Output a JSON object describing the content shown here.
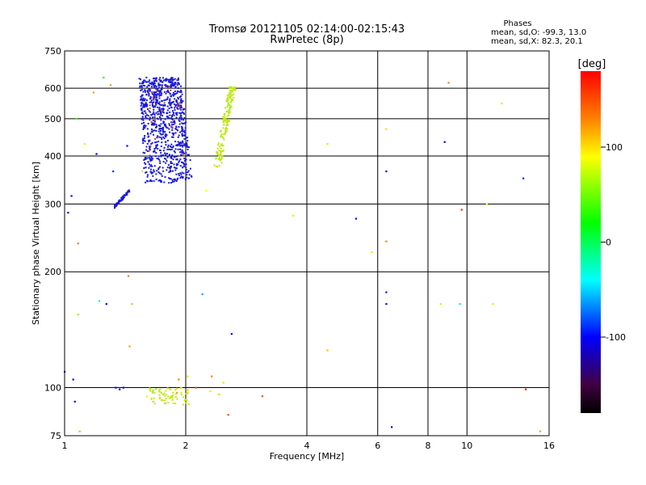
{
  "header": {
    "title_line1": "Tromsø 20121105 02:14:00-02:15:43",
    "title_line2": "RwPretec (8p)",
    "phases_title": "Phases",
    "phases_line1": "mean, sd,O: -99.3, 13.0",
    "phases_line2": "mean, sd,X:  82.3, 20.1"
  },
  "chart_data": {
    "type": "scatter",
    "xlabel": "Frequency [MHz]",
    "ylabel": "Stationary phase Virtual Height [km]",
    "x_scale": "log",
    "y_scale": "log",
    "xlim": [
      1,
      16
    ],
    "ylim": [
      75,
      750
    ],
    "x_ticks": [
      1,
      2,
      4,
      6,
      8,
      10,
      16
    ],
    "y_ticks": [
      75,
      100,
      200,
      300,
      400,
      500,
      600,
      750
    ],
    "grid": true,
    "colorbar": {
      "label": "[deg]",
      "range": [
        -180,
        180
      ],
      "ticks": [
        100,
        0,
        -100
      ],
      "colors": [
        "#ff0000",
        "#ff8000",
        "#ffff00",
        "#00ff00",
        "#00ffff",
        "#0000ff",
        "#400040",
        "#000000"
      ]
    },
    "o_trace_color": "#1a1adc",
    "x_trace_color": "#d0e000",
    "points": [
      {
        "x": 1.0,
        "y": 110,
        "phase": -95
      },
      {
        "x": 1.02,
        "y": 285,
        "phase": -110
      },
      {
        "x": 1.04,
        "y": 315,
        "phase": -105
      },
      {
        "x": 1.05,
        "y": 105,
        "phase": -100
      },
      {
        "x": 1.06,
        "y": 92,
        "phase": -110
      },
      {
        "x": 1.07,
        "y": 500,
        "phase": 40
      },
      {
        "x": 1.08,
        "y": 155,
        "phase": 60
      },
      {
        "x": 1.08,
        "y": 237,
        "phase": 130
      },
      {
        "x": 1.09,
        "y": 77,
        "phase": 50
      },
      {
        "x": 1.12,
        "y": 430,
        "phase": 80
      },
      {
        "x": 1.18,
        "y": 585,
        "phase": 120
      },
      {
        "x": 1.2,
        "y": 405,
        "phase": -100
      },
      {
        "x": 1.22,
        "y": 168,
        "phase": -30
      },
      {
        "x": 1.25,
        "y": 640,
        "phase": 30
      },
      {
        "x": 1.27,
        "y": 165,
        "phase": -100
      },
      {
        "x": 1.3,
        "y": 612,
        "phase": 120
      },
      {
        "x": 1.32,
        "y": 365,
        "phase": -90
      },
      {
        "x": 1.34,
        "y": 100,
        "phase": -105
      },
      {
        "x": 1.37,
        "y": 99,
        "phase": -110
      },
      {
        "x": 1.4,
        "y": 100,
        "phase": -100
      },
      {
        "x": 1.43,
        "y": 425,
        "phase": -100
      },
      {
        "x": 1.44,
        "y": 195,
        "phase": 130
      },
      {
        "x": 1.45,
        "y": 128,
        "phase": 120
      },
      {
        "x": 1.47,
        "y": 165,
        "phase": 110
      },
      {
        "x": 1.56,
        "y": 365,
        "phase": 100
      },
      {
        "x": 1.6,
        "y": 95,
        "phase": 95
      },
      {
        "x": 1.66,
        "y": 92,
        "phase": 110
      },
      {
        "x": 1.72,
        "y": 94,
        "phase": 85
      },
      {
        "x": 1.78,
        "y": 91,
        "phase": 90
      },
      {
        "x": 1.85,
        "y": 95,
        "phase": 60
      },
      {
        "x": 1.9,
        "y": 97,
        "phase": 120
      },
      {
        "x": 1.95,
        "y": 100,
        "phase": 100
      },
      {
        "x": 2.0,
        "y": 93,
        "phase": 85
      },
      {
        "x": 1.92,
        "y": 105,
        "phase": 130
      },
      {
        "x": 2.02,
        "y": 107,
        "phase": 100
      },
      {
        "x": 2.12,
        "y": 100,
        "phase": 150
      },
      {
        "x": 2.2,
        "y": 175,
        "phase": -60
      },
      {
        "x": 2.25,
        "y": 325,
        "phase": 90
      },
      {
        "x": 2.3,
        "y": 98,
        "phase": 75
      },
      {
        "x": 2.32,
        "y": 107,
        "phase": 130
      },
      {
        "x": 2.42,
        "y": 96,
        "phase": 110
      },
      {
        "x": 2.48,
        "y": 103,
        "phase": 100
      },
      {
        "x": 2.55,
        "y": 85,
        "phase": 150
      },
      {
        "x": 2.6,
        "y": 138,
        "phase": -100
      },
      {
        "x": 3.1,
        "y": 95,
        "phase": 150
      },
      {
        "x": 3.7,
        "y": 280,
        "phase": 100
      },
      {
        "x": 4.5,
        "y": 430,
        "phase": 100
      },
      {
        "x": 4.5,
        "y": 125,
        "phase": 110
      },
      {
        "x": 5.3,
        "y": 275,
        "phase": -100
      },
      {
        "x": 5.8,
        "y": 225,
        "phase": 100
      },
      {
        "x": 6.3,
        "y": 470,
        "phase": 100
      },
      {
        "x": 6.3,
        "y": 365,
        "phase": -100
      },
      {
        "x": 6.3,
        "y": 240,
        "phase": 130
      },
      {
        "x": 6.3,
        "y": 177,
        "phase": -95
      },
      {
        "x": 6.3,
        "y": 165,
        "phase": -110
      },
      {
        "x": 6.5,
        "y": 79,
        "phase": -110
      },
      {
        "x": 8.6,
        "y": 165,
        "phase": 100
      },
      {
        "x": 8.8,
        "y": 435,
        "phase": -110
      },
      {
        "x": 9.0,
        "y": 620,
        "phase": 130
      },
      {
        "x": 9.6,
        "y": 165,
        "phase": -20
      },
      {
        "x": 9.7,
        "y": 290,
        "phase": 160
      },
      {
        "x": 11.2,
        "y": 300,
        "phase": 90
      },
      {
        "x": 11.6,
        "y": 165,
        "phase": 100
      },
      {
        "x": 12.2,
        "y": 548,
        "phase": 100
      },
      {
        "x": 13.8,
        "y": 350,
        "phase": -90
      },
      {
        "x": 14.0,
        "y": 99,
        "phase": 170
      },
      {
        "x": 15.2,
        "y": 77,
        "phase": 120
      }
    ]
  }
}
